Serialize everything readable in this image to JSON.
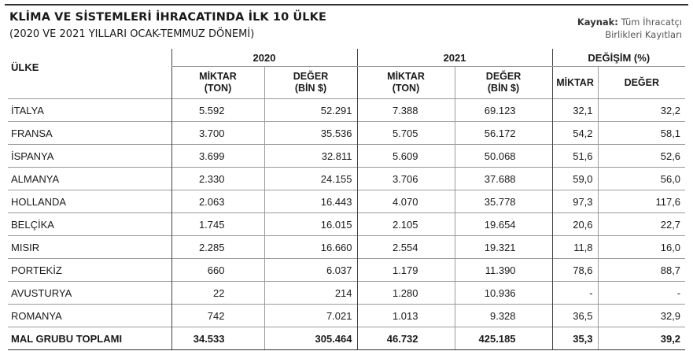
{
  "header": {
    "title": "KLİMA VE SİSTEMLERİ İHRACATINDA İLK 10 ÜLKE",
    "subtitle": "(2020 VE 2021 YILLARI OCAK-TEMMUZ DÖNEMİ)",
    "source_label": "Kaynak:",
    "source_line1": "Tüm İhracatçı",
    "source_line2": "Birlikleri Kayıtları"
  },
  "table": {
    "country_header": "ÜLKE",
    "groups": [
      "2020",
      "2021",
      "DEĞİŞİM (%)"
    ],
    "sub": {
      "miktar_ton_1": "MİKTAR",
      "miktar_ton_2": "(TON)",
      "deger_1": "DEĞER",
      "deger_2": "(BİN $)",
      "miktar": "MİKTAR",
      "deger": "DEĞER"
    },
    "rows": [
      [
        "İTALYA",
        "5.592",
        "52.291",
        "7.388",
        "69.123",
        "32,1",
        "32,2"
      ],
      [
        "FRANSA",
        "3.700",
        "35.536",
        "5.705",
        "56.172",
        "54,2",
        "58,1"
      ],
      [
        "İSPANYA",
        "3.699",
        "32.811",
        "5.609",
        "50.068",
        "51,6",
        "52,6"
      ],
      [
        "ALMANYA",
        "2.330",
        "24.155",
        "3.706",
        "37.688",
        "59,0",
        "56,0"
      ],
      [
        "HOLLANDA",
        "2.063",
        "16.443",
        "4.070",
        "35.778",
        "97,3",
        "117,6"
      ],
      [
        "BELÇİKA",
        "1.745",
        "16.015",
        "2.105",
        "19.654",
        "20,6",
        "22,7"
      ],
      [
        "MISIR",
        "2.285",
        "16.660",
        "2.554",
        "19.321",
        "11,8",
        "16,0"
      ],
      [
        "PORTEKİZ",
        "660",
        "6.037",
        "1.179",
        "11.390",
        "78,6",
        "88,7"
      ],
      [
        "AVUSTURYA",
        "22",
        "214",
        "1.280",
        "10.936",
        "-",
        "-"
      ],
      [
        "ROMANYA",
        "742",
        "7.021",
        "1.013",
        "9.328",
        "36,5",
        "32,9"
      ]
    ],
    "total": [
      "MAL GRUBU TOPLAMI",
      "34.533",
      "305.464",
      "46.732",
      "425.185",
      "35,3",
      "39,2"
    ]
  }
}
